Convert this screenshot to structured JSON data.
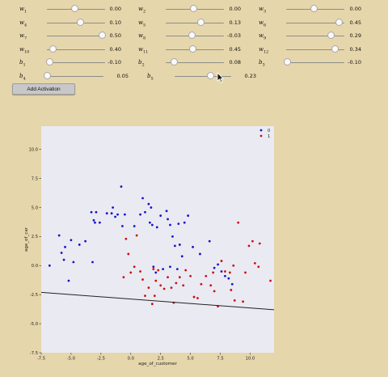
{
  "params": [
    {
      "sym": "w",
      "sub": "1",
      "value": "0.00",
      "frac": 0.48
    },
    {
      "sym": "w",
      "sub": "2",
      "value": "0.00",
      "frac": 0.48
    },
    {
      "sym": "w",
      "sub": "3",
      "value": "0.00",
      "frac": 0.48
    },
    {
      "sym": "w",
      "sub": "4",
      "value": "0.10",
      "frac": 0.58
    },
    {
      "sym": "w",
      "sub": "5",
      "value": "0.13",
      "frac": 0.6
    },
    {
      "sym": "w",
      "sub": "6",
      "value": "0.45",
      "frac": 0.91
    },
    {
      "sym": "w",
      "sub": "7",
      "value": "0.50",
      "frac": 0.95
    },
    {
      "sym": "w",
      "sub": "8",
      "value": "-0.03",
      "frac": 0.45
    },
    {
      "sym": "w",
      "sub": "9",
      "value": "0.29",
      "frac": 0.77
    },
    {
      "sym": "w",
      "sub": "10",
      "value": "0.40",
      "frac": 0.1
    },
    {
      "sym": "w",
      "sub": "11",
      "value": "0.45",
      "frac": 0.46
    },
    {
      "sym": "w",
      "sub": "12",
      "value": "0.34",
      "frac": 0.84
    },
    {
      "sym": "b",
      "sub": "1",
      "value": "-0.10",
      "frac": 0.05
    },
    {
      "sym": "b",
      "sub": "2",
      "value": "0.08",
      "frac": 0.15
    },
    {
      "sym": "b",
      "sub": "3",
      "value": "-0.10",
      "frac": 0.02
    },
    {
      "sym": "b",
      "sub": "4",
      "value": "0.05",
      "frac": 0.0
    },
    {
      "sym": "b",
      "sub": "5",
      "value": "0.23",
      "frac": 0.63
    }
  ],
  "add_button_label": "Add Activation",
  "colors": {
    "class0": "#1515c8",
    "class1": "#cc1010",
    "line": "#222222",
    "plot_bg": "#eaeaf2",
    "page_bg": "#e6d6ab"
  },
  "chart_data": {
    "type": "scatter",
    "xlabel": "age_of_customer",
    "ylabel": "age_of_car",
    "xlim": [
      -7.5,
      12.0
    ],
    "ylim": [
      -7.5,
      12.0
    ],
    "xticks": [
      -7.5,
      -5.0,
      -2.5,
      0.0,
      2.5,
      5.0,
      7.5,
      10.0
    ],
    "yticks": [
      -7.5,
      -5.0,
      -2.5,
      0.0,
      2.5,
      5.0,
      7.5,
      10.0
    ],
    "legend_position": "top-right",
    "series": [
      {
        "name": "0",
        "points": [
          [
            -6.8,
            0.0
          ],
          [
            -6.0,
            2.6
          ],
          [
            -5.8,
            1.1
          ],
          [
            -5.6,
            0.5
          ],
          [
            -5.5,
            1.6
          ],
          [
            -5.2,
            -1.3
          ],
          [
            -5.0,
            2.2
          ],
          [
            -4.8,
            0.3
          ],
          [
            -4.3,
            1.8
          ],
          [
            -3.8,
            2.1
          ],
          [
            -3.3,
            4.6
          ],
          [
            -3.2,
            0.3
          ],
          [
            -3.1,
            3.9
          ],
          [
            -3.0,
            3.7
          ],
          [
            -2.9,
            4.6
          ],
          [
            -2.6,
            3.7
          ],
          [
            -2.0,
            4.5
          ],
          [
            -1.6,
            4.5
          ],
          [
            -1.5,
            5.0
          ],
          [
            -1.3,
            4.2
          ],
          [
            -1.1,
            4.4
          ],
          [
            -0.8,
            6.8
          ],
          [
            -0.7,
            3.4
          ],
          [
            -0.5,
            4.4
          ],
          [
            0.3,
            3.4
          ],
          [
            0.8,
            4.4
          ],
          [
            1.0,
            5.8
          ],
          [
            1.2,
            4.6
          ],
          [
            1.5,
            5.3
          ],
          [
            1.6,
            3.7
          ],
          [
            1.7,
            5.0
          ],
          [
            1.8,
            3.5
          ],
          [
            2.2,
            3.3
          ],
          [
            2.5,
            4.3
          ],
          [
            3.0,
            4.7
          ],
          [
            3.1,
            4.0
          ],
          [
            3.3,
            3.5
          ],
          [
            3.5,
            2.5
          ],
          [
            3.7,
            1.7
          ],
          [
            4.0,
            3.6
          ],
          [
            4.1,
            1.8
          ],
          [
            4.3,
            0.8
          ],
          [
            4.5,
            3.7
          ],
          [
            4.8,
            4.3
          ],
          [
            5.2,
            1.6
          ],
          [
            5.8,
            1.0
          ],
          [
            6.6,
            2.1
          ],
          [
            7.0,
            -0.2
          ],
          [
            7.3,
            0.1
          ],
          [
            7.6,
            -0.5
          ],
          [
            7.9,
            -0.9
          ],
          [
            8.2,
            -1.1
          ],
          [
            8.5,
            -1.6
          ],
          [
            3.9,
            -0.3
          ],
          [
            2.7,
            -0.3
          ],
          [
            3.3,
            -0.1
          ],
          [
            2.1,
            -0.6
          ],
          [
            1.9,
            -0.1
          ]
        ]
      },
      {
        "name": "1",
        "points": [
          [
            -0.6,
            -1.0
          ],
          [
            -0.4,
            2.3
          ],
          [
            -0.2,
            1.0
          ],
          [
            0.0,
            -0.6
          ],
          [
            0.3,
            -0.1
          ],
          [
            0.5,
            2.6
          ],
          [
            0.8,
            -0.5
          ],
          [
            1.0,
            -1.2
          ],
          [
            1.2,
            -2.6
          ],
          [
            1.5,
            -1.9
          ],
          [
            1.8,
            -3.3
          ],
          [
            1.9,
            -0.3
          ],
          [
            2.0,
            -2.6
          ],
          [
            2.1,
            -1.3
          ],
          [
            2.3,
            -0.4
          ],
          [
            2.5,
            -1.7
          ],
          [
            2.8,
            -2.0
          ],
          [
            3.1,
            -1.0
          ],
          [
            3.4,
            -1.9
          ],
          [
            3.6,
            -3.2
          ],
          [
            3.8,
            -1.5
          ],
          [
            4.1,
            -1.0
          ],
          [
            4.4,
            -1.7
          ],
          [
            4.6,
            -0.4
          ],
          [
            5.0,
            -0.9
          ],
          [
            5.3,
            -2.7
          ],
          [
            5.6,
            -2.8
          ],
          [
            5.9,
            -1.6
          ],
          [
            6.3,
            -0.9
          ],
          [
            6.7,
            -1.7
          ],
          [
            7.0,
            -2.2
          ],
          [
            7.3,
            -3.5
          ],
          [
            7.6,
            0.4
          ],
          [
            7.9,
            -0.5
          ],
          [
            8.3,
            -0.6
          ],
          [
            8.6,
            0.0
          ],
          [
            8.7,
            -3.0
          ],
          [
            9.0,
            3.7
          ],
          [
            9.4,
            -3.1
          ],
          [
            9.6,
            -0.6
          ],
          [
            9.9,
            1.7
          ],
          [
            10.2,
            2.1
          ],
          [
            10.4,
            0.2
          ],
          [
            10.7,
            -0.1
          ],
          [
            10.8,
            1.9
          ],
          [
            11.7,
            -1.3
          ],
          [
            8.4,
            -2.1
          ],
          [
            6.9,
            -0.6
          ]
        ]
      }
    ],
    "decision_line": {
      "x": [
        -7.5,
        12.0
      ],
      "y": [
        -2.3,
        -3.8
      ]
    }
  }
}
